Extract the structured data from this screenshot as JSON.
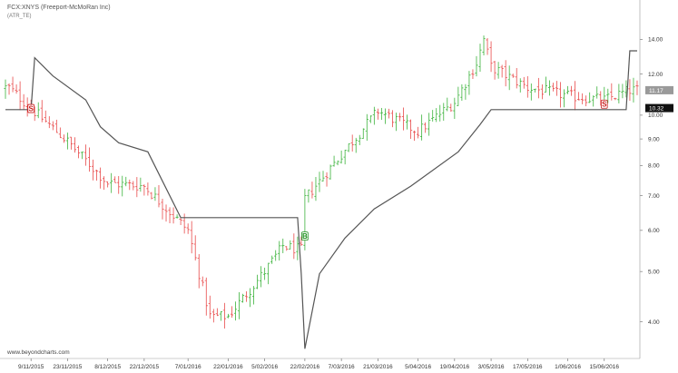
{
  "header": {
    "title": "FCX:XNYS (Freeport-McMoRan Inc)",
    "indicator": "(ATR_TE)"
  },
  "watermark": "www.beyondcharts.com",
  "chart_data": {
    "type": "candlestick-with-trailing-stop",
    "y_scale": "log",
    "ylim": [
      3.4,
      15.5
    ],
    "y_ticks": [
      {
        "v": 14.0,
        "label": "14.00"
      },
      {
        "v": 12.0,
        "label": "12.00"
      },
      {
        "v": 10.0,
        "label": "10.00"
      },
      {
        "v": 9.0,
        "label": "9.00"
      },
      {
        "v": 8.0,
        "label": "8.00"
      },
      {
        "v": 7.0,
        "label": "7.00"
      },
      {
        "v": 6.0,
        "label": "6.00"
      },
      {
        "v": 5.0,
        "label": "5.00"
      },
      {
        "v": 4.0,
        "label": "4.00"
      }
    ],
    "x_ticks": [
      "9/11/2015",
      "23/11/2015",
      "8/12/2015",
      "22/12/2015",
      "7/01/2016",
      "22/01/2016",
      "5/02/2016",
      "22/02/2016",
      "7/03/2016",
      "21/03/2016",
      "5/04/2016",
      "19/04/2016",
      "3/05/2016",
      "17/05/2016",
      "1/06/2016",
      "15/06/2016"
    ],
    "last_price_tags": [
      {
        "value": 11.17,
        "label": "11.17",
        "style": "grey"
      },
      {
        "value": 10.32,
        "label": "10.32",
        "style": "black"
      }
    ],
    "signals": [
      {
        "type": "sell",
        "date": "9/11/2015",
        "price": 10.3,
        "label": "S"
      },
      {
        "type": "buy",
        "date": "22/02/2016",
        "price": 5.85,
        "label": "B"
      },
      {
        "type": "sell",
        "date": "15/06/2016",
        "price": 10.5,
        "label": "S"
      }
    ],
    "price_anchors": [
      [
        "2015-11-01",
        11.3
      ],
      [
        "2015-11-09",
        10.3
      ],
      [
        "2015-11-23",
        8.9
      ],
      [
        "2015-12-08",
        7.4
      ],
      [
        "2015-12-22",
        7.3
      ],
      [
        "2016-01-07",
        6.0
      ],
      [
        "2016-01-15",
        4.1
      ],
      [
        "2016-01-22",
        4.1
      ],
      [
        "2016-02-05",
        5.0
      ],
      [
        "2016-02-12",
        5.6
      ],
      [
        "2016-02-19",
        5.5
      ],
      [
        "2016-02-22",
        6.9
      ],
      [
        "2016-03-07",
        8.4
      ],
      [
        "2016-03-21",
        10.2
      ],
      [
        "2016-04-05",
        9.3
      ],
      [
        "2016-04-19",
        10.6
      ],
      [
        "2016-04-27",
        12.6
      ],
      [
        "2016-05-01",
        14.0
      ],
      [
        "2016-05-03",
        12.4
      ],
      [
        "2016-05-17",
        11.3
      ],
      [
        "2016-06-01",
        10.9
      ],
      [
        "2016-06-15",
        10.7
      ],
      [
        "2016-06-24",
        11.17
      ]
    ],
    "stop_line": [
      [
        "2015-10-29",
        10.25
      ],
      [
        "2015-11-09",
        10.25
      ],
      [
        "2015-11-10",
        12.9
      ],
      [
        "2015-11-17",
        11.9
      ],
      [
        "2015-11-30",
        10.7
      ],
      [
        "2015-12-04",
        9.5
      ],
      [
        "2015-12-13",
        8.85
      ],
      [
        "2015-12-23",
        8.5
      ],
      [
        "2016-01-05",
        6.35
      ],
      [
        "2016-02-18",
        6.35
      ],
      [
        "2016-02-19",
        4.95
      ],
      [
        "2016-02-22",
        3.55
      ],
      [
        "2016-02-26",
        4.95
      ],
      [
        "2016-03-08",
        5.8
      ],
      [
        "2016-03-18",
        6.6
      ],
      [
        "2016-04-01",
        7.3
      ],
      [
        "2016-04-20",
        8.5
      ],
      [
        "2016-04-28",
        9.6
      ],
      [
        "2016-05-03",
        10.25
      ],
      [
        "2016-06-23",
        10.25
      ],
      [
        "2016-06-24",
        13.3
      ],
      [
        "2016-06-28",
        13.3
      ]
    ]
  }
}
